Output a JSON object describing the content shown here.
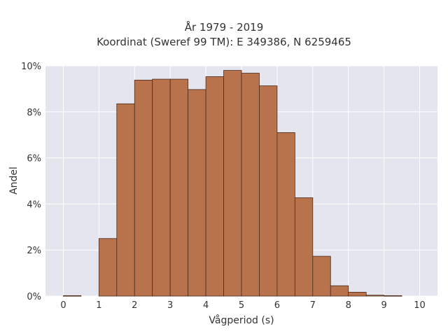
{
  "chart_data": {
    "type": "bar",
    "title_lines": [
      "År 1979 - 2019",
      "Koordinat (Sweref 99 TM): E 349386, N 6259465"
    ],
    "xlabel": "Vågperiod (s)",
    "ylabel": "Andel",
    "xlim": [
      -0.5,
      10.5
    ],
    "ylim": [
      0,
      10
    ],
    "xticks": [
      0,
      1,
      2,
      3,
      4,
      5,
      6,
      7,
      8,
      9,
      10
    ],
    "xtick_labels": [
      "0",
      "1",
      "2",
      "3",
      "4",
      "5",
      "6",
      "7",
      "8",
      "9",
      "10"
    ],
    "yticks": [
      0,
      2,
      4,
      6,
      8,
      10
    ],
    "ytick_labels": [
      "0%",
      "2%",
      "4%",
      "6%",
      "8%",
      "10%"
    ],
    "grid": true,
    "bin_width": 0.5,
    "bin_edges_start": [
      0,
      0.5,
      1,
      1.5,
      2,
      2.5,
      3,
      3.5,
      4,
      4.5,
      5,
      5.5,
      6,
      6.5,
      7,
      7.5,
      8,
      8.5,
      9,
      9.5
    ],
    "values": [
      0.02,
      0,
      2.5,
      8.35,
      9.38,
      9.42,
      9.42,
      8.97,
      9.53,
      9.8,
      9.68,
      9.13,
      7.1,
      4.27,
      1.73,
      0.45,
      0.17,
      0.04,
      0.02,
      0
    ],
    "colors": {
      "bar_fill": "#b8734d",
      "bar_stroke": "#4a2c1c",
      "plot_bg": "#e5e5ef",
      "grid": "#ffffff",
      "text": "#333333"
    }
  }
}
